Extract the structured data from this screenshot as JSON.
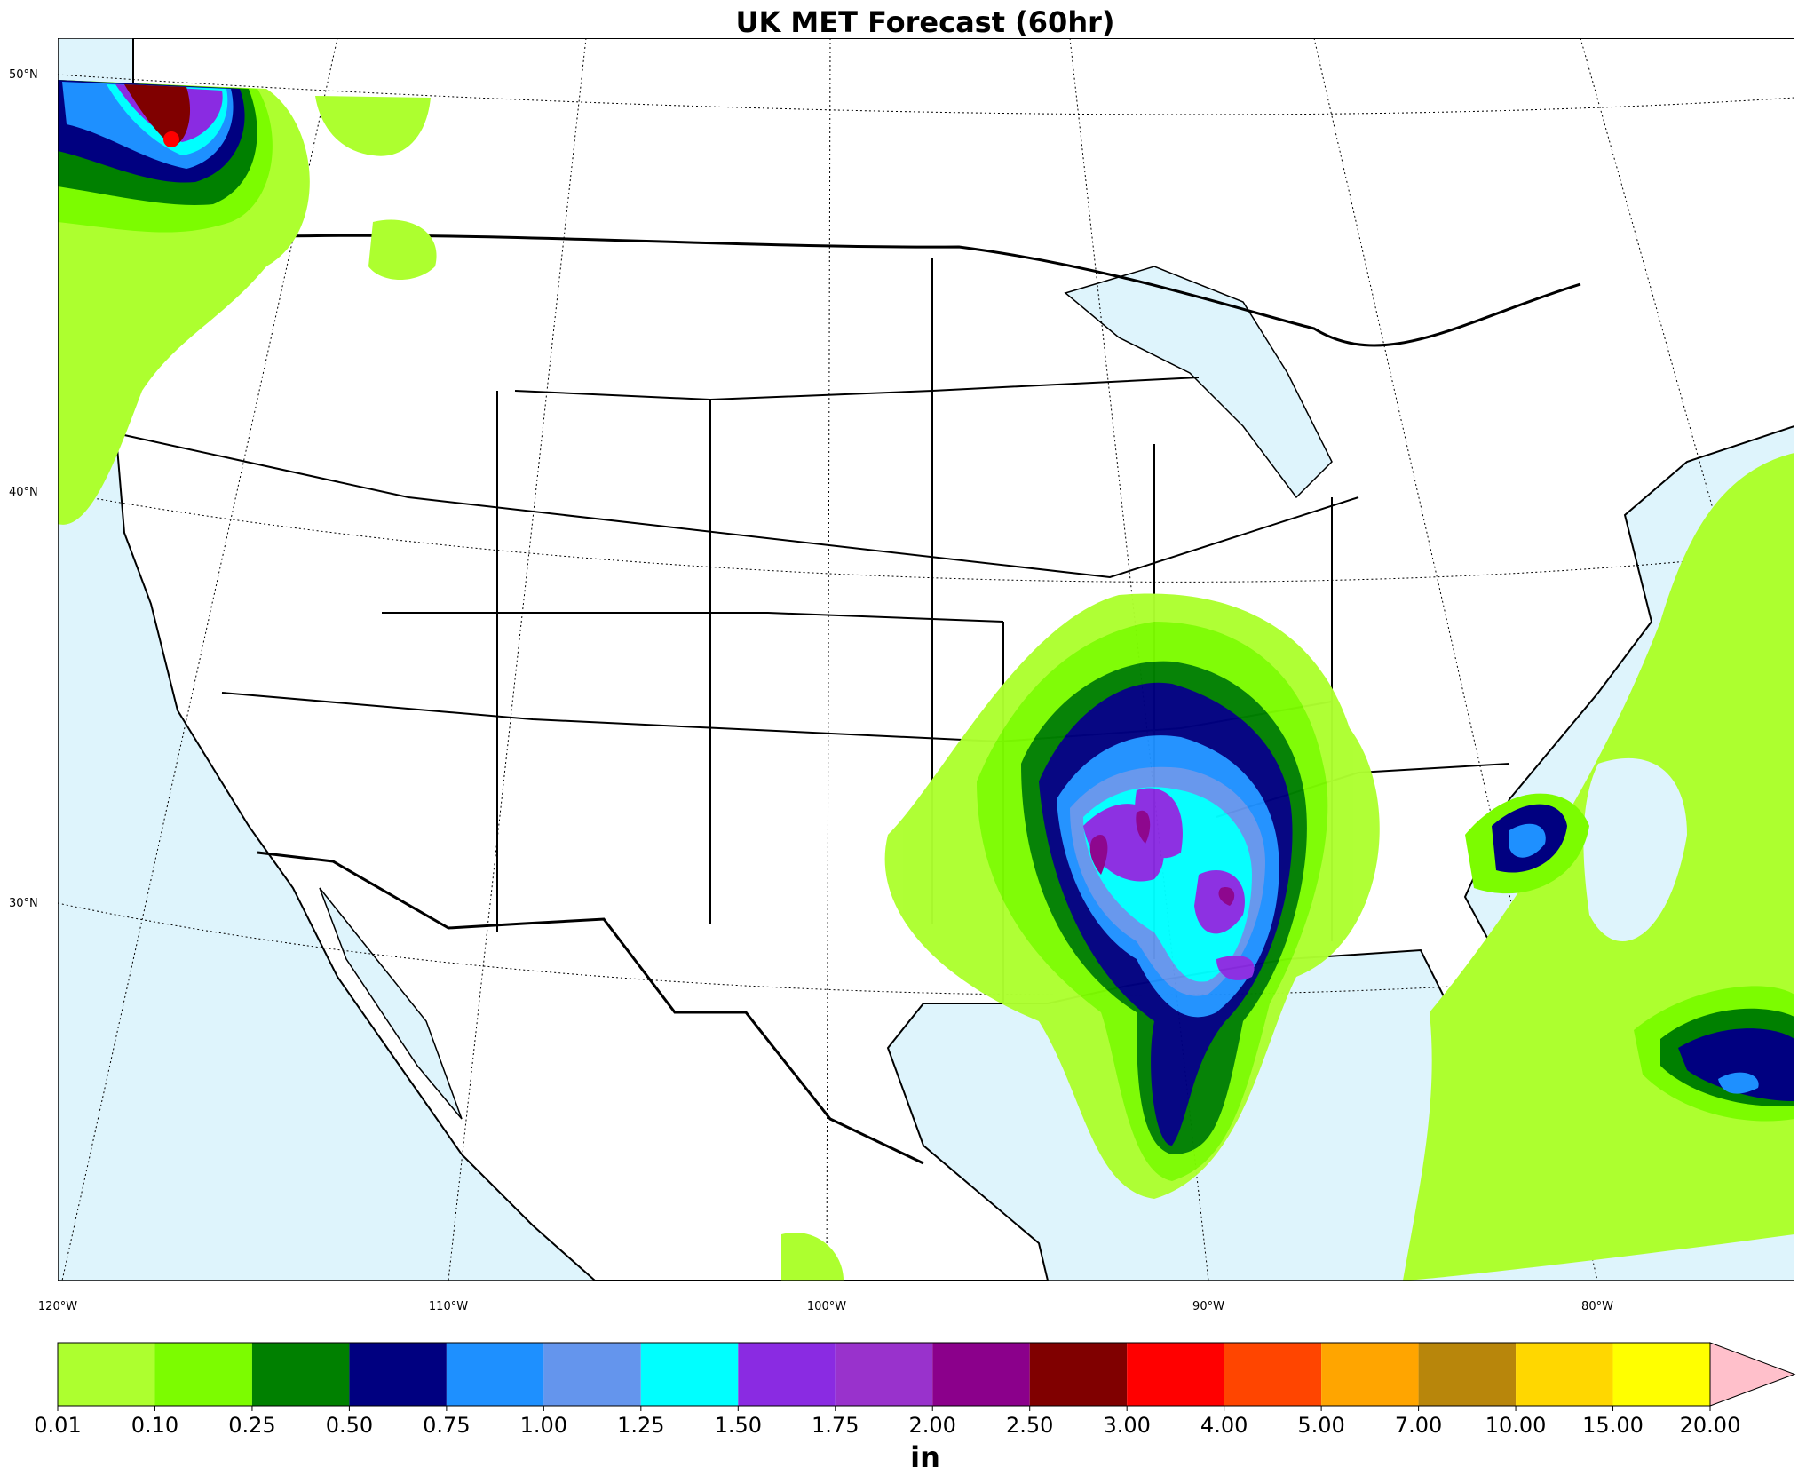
{
  "header": {
    "title": "UK MET Forecast (60hr)"
  },
  "map": {
    "lat_labels": [
      "50°N",
      "40°N",
      "30°N"
    ],
    "lon_labels": [
      "120°W",
      "110°W",
      "100°W",
      "90°W",
      "80°W"
    ]
  },
  "colorbar": {
    "levels": [
      {
        "value": 0.01,
        "label": "0.01"
      },
      {
        "value": 0.1,
        "label": "0.10"
      },
      {
        "value": 0.25,
        "label": "0.25"
      },
      {
        "value": 0.5,
        "label": "0.50"
      },
      {
        "value": 0.75,
        "label": "0.75"
      },
      {
        "value": 1,
        "label": "1.00"
      },
      {
        "value": 1.25,
        "label": "1.25"
      },
      {
        "value": 1.5,
        "label": "1.50"
      },
      {
        "value": 1.75,
        "label": "1.75"
      },
      {
        "value": 2,
        "label": "2.00"
      },
      {
        "value": 2.5,
        "label": "2.50"
      },
      {
        "value": 3,
        "label": "3.00"
      },
      {
        "value": 4,
        "label": "4.00"
      },
      {
        "value": 5,
        "label": "5.00"
      },
      {
        "value": 7,
        "label": "7.00"
      },
      {
        "value": 10,
        "label": "10.00"
      },
      {
        "value": 15,
        "label": "15.00"
      },
      {
        "value": 20,
        "label": "20.00"
      }
    ],
    "colors": [
      "#adff2f",
      "#7cfc00",
      "#008000",
      "#000080",
      "#1e90ff",
      "#6495ed",
      "#00ffff",
      "#8a2be2",
      "#9932cc",
      "#8b008b",
      "#800000",
      "#ff0000",
      "#ff4500",
      "#ffa500",
      "#b8860b",
      "#ffd700",
      "#ffff00"
    ],
    "over_color": "#ffc0cb",
    "unit": "in"
  }
}
